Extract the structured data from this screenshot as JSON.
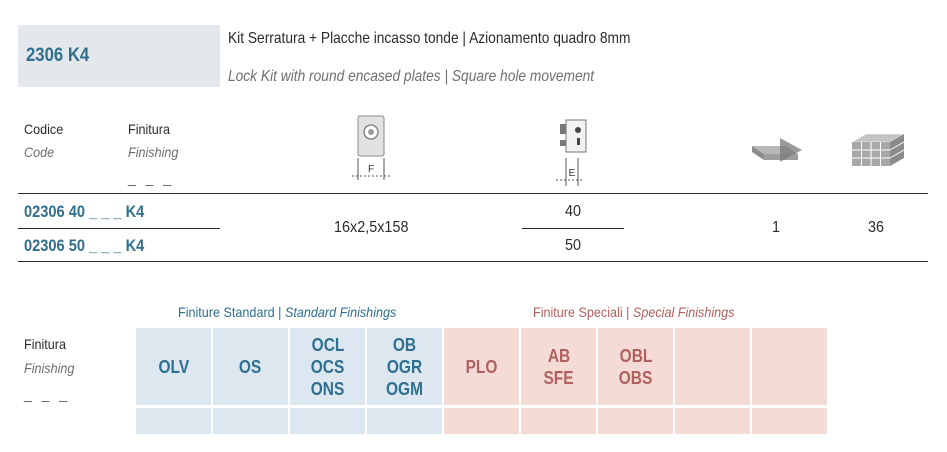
{
  "product": {
    "code": "2306 K4",
    "title_it": "Kit Serratura + Placche incasso tonde | Azionamento quadro 8mm",
    "title_en": "Lock Kit with round encased plates | Square hole movement"
  },
  "table": {
    "headers": {
      "code_it": "Codice",
      "code_en": "Code",
      "finish_it": "Finitura",
      "finish_en": "Finishing",
      "finish_dash": "_ _ _",
      "plate_dim_label": "F",
      "entrance_label": "E"
    },
    "rows": [
      {
        "code": "02306 40 _ _ _ K4",
        "entrance": "40"
      },
      {
        "code": "02306 50 _ _ _ K4",
        "entrance": "50"
      }
    ],
    "plate_size": "16x2,5x158",
    "pack_qty": "1",
    "box_qty": "36"
  },
  "finishes": {
    "label_it": "Finitura",
    "label_en": "Finishing",
    "label_dash": "_ _ _",
    "standard_it": "Finiture Standard",
    "standard_en": "Standard Finishings",
    "special_it": "Finiture Speciali",
    "special_en": "Special Finishings",
    "standard": [
      {
        "lines": [
          "OLV"
        ]
      },
      {
        "lines": [
          "OS"
        ]
      },
      {
        "lines": [
          "OCL",
          "OCS",
          "ONS"
        ]
      },
      {
        "lines": [
          "OB",
          "OGR",
          "OGM"
        ]
      }
    ],
    "special": [
      {
        "lines": [
          "PLO"
        ]
      },
      {
        "lines": [
          "AB",
          "SFE"
        ]
      },
      {
        "lines": [
          "OBL",
          "OBS"
        ]
      },
      {
        "lines": []
      },
      {
        "lines": []
      }
    ]
  },
  "colors": {
    "accent_blue": "#2f6f8f",
    "accent_red": "#b0605e",
    "cell_blue": "#dde7ef",
    "cell_pink": "#f5dbd5",
    "code_box": "#e4e8ec"
  },
  "icons": [
    "rosette-plate-icon",
    "lock-body-icon",
    "single-pack-icon",
    "box-pack-icon"
  ]
}
